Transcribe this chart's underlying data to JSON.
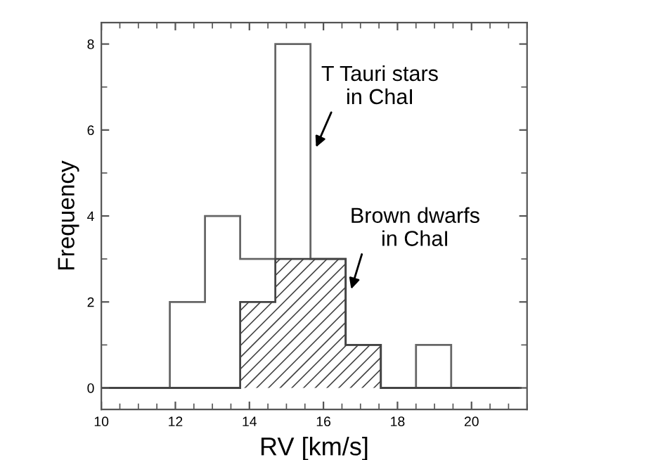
{
  "chart_data": {
    "type": "histogram",
    "xlabel": "RV [km/s]",
    "ylabel": "Frequency",
    "bins": [
      9.95,
      10.9,
      11.85,
      12.8,
      13.75,
      14.7,
      15.65,
      16.6,
      17.55,
      18.5,
      19.45,
      20.4,
      21.35
    ],
    "series": [
      {
        "color": "#666666",
        "values": [
          0,
          0,
          2,
          4,
          3,
          8,
          3,
          1,
          0,
          1,
          0,
          0
        ]
      },
      {
        "color": "#444444",
        "values": [
          0,
          0,
          0,
          0,
          2,
          3,
          3,
          1,
          0,
          0,
          0,
          0
        ]
      }
    ],
    "annotations": [
      {
        "text": "T Tauri stars\nin ChaI",
        "x": 15.8,
        "y": 5.6
      },
      {
        "text": "Brown dwarfs\nin ChaI",
        "x": 16.75,
        "y": 2.3
      }
    ],
    "xlim": [
      10.0,
      21.5
    ],
    "ylim": [
      -0.5,
      8.5
    ],
    "xticks": [
      10,
      12,
      14,
      16,
      18,
      20
    ],
    "yticks": [
      0,
      2,
      4,
      6,
      8
    ],
    "grid": false,
    "legend": false
  }
}
